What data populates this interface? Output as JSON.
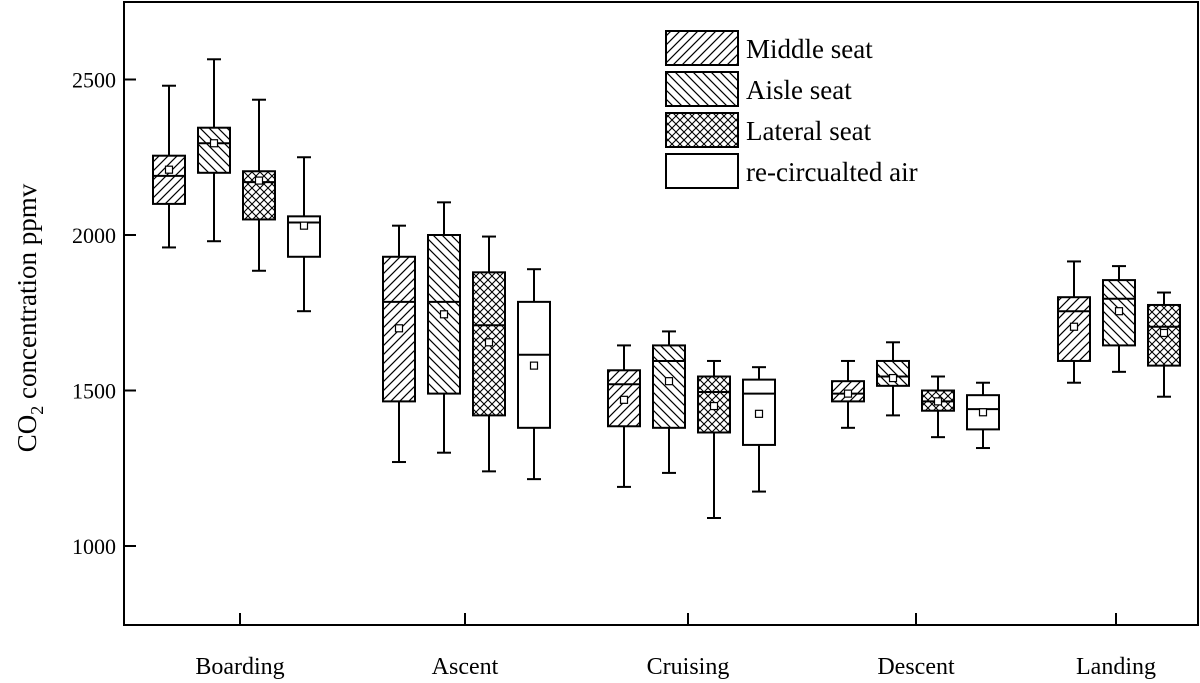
{
  "chart_data": {
    "type": "box",
    "ylabel": {
      "pre": "CO",
      "sub": "2",
      "post": " concentration ppmv"
    },
    "ylim": [
      750,
      2750
    ],
    "yticks": [
      1000,
      1500,
      2000,
      2500
    ],
    "categories": [
      "Boarding",
      "Ascent",
      "Cruising",
      "Descent",
      "Landing"
    ],
    "series": [
      {
        "name": "Middle seat",
        "pattern": "diag-right",
        "boxes": [
          {
            "min": 1960,
            "q1": 2100,
            "median": 2190,
            "q3": 2255,
            "max": 2480,
            "mean": 2210
          },
          {
            "min": 1270,
            "q1": 1465,
            "median": 1785,
            "q3": 1930,
            "max": 2030,
            "mean": 1700
          },
          {
            "min": 1190,
            "q1": 1385,
            "median": 1520,
            "q3": 1565,
            "max": 1645,
            "mean": 1470
          },
          {
            "min": 1380,
            "q1": 1465,
            "median": 1490,
            "q3": 1530,
            "max": 1595,
            "mean": 1490
          },
          {
            "min": 1525,
            "q1": 1595,
            "median": 1755,
            "q3": 1800,
            "max": 1915,
            "mean": 1705
          }
        ]
      },
      {
        "name": "Aisle seat",
        "pattern": "diag-left",
        "boxes": [
          {
            "min": 1980,
            "q1": 2200,
            "median": 2295,
            "q3": 2345,
            "max": 2565,
            "mean": 2295
          },
          {
            "min": 1300,
            "q1": 1490,
            "median": 1785,
            "q3": 2000,
            "max": 2105,
            "mean": 1745
          },
          {
            "min": 1235,
            "q1": 1380,
            "median": 1595,
            "q3": 1645,
            "max": 1690,
            "mean": 1530
          },
          {
            "min": 1420,
            "q1": 1515,
            "median": 1545,
            "q3": 1595,
            "max": 1655,
            "mean": 1540
          },
          {
            "min": 1560,
            "q1": 1645,
            "median": 1795,
            "q3": 1855,
            "max": 1900,
            "mean": 1755
          }
        ]
      },
      {
        "name": "Lateral seat",
        "pattern": "crosshatch",
        "boxes": [
          {
            "min": 1885,
            "q1": 2050,
            "median": 2170,
            "q3": 2205,
            "max": 2435,
            "mean": 2175
          },
          {
            "min": 1240,
            "q1": 1420,
            "median": 1710,
            "q3": 1880,
            "max": 1995,
            "mean": 1655
          },
          {
            "min": 1090,
            "q1": 1365,
            "median": 1495,
            "q3": 1545,
            "max": 1595,
            "mean": 1450
          },
          {
            "min": 1350,
            "q1": 1435,
            "median": 1465,
            "q3": 1500,
            "max": 1545,
            "mean": 1465
          },
          {
            "min": 1480,
            "q1": 1580,
            "median": 1705,
            "q3": 1775,
            "max": 1815,
            "mean": 1685
          }
        ]
      },
      {
        "name": "re-circualted air",
        "pattern": "none",
        "boxes": [
          {
            "min": 1755,
            "q1": 1930,
            "median": 2040,
            "q3": 2060,
            "max": 2250,
            "mean": 2030
          },
          {
            "min": 1215,
            "q1": 1380,
            "median": 1615,
            "q3": 1785,
            "max": 1890,
            "mean": 1580
          },
          {
            "min": 1175,
            "q1": 1325,
            "median": 1490,
            "q3": 1535,
            "max": 1575,
            "mean": 1425
          },
          {
            "min": 1315,
            "q1": 1375,
            "median": 1440,
            "q3": 1485,
            "max": 1525,
            "mean": 1430
          },
          null
        ]
      }
    ],
    "legend_position": "top-right",
    "grid": false
  }
}
